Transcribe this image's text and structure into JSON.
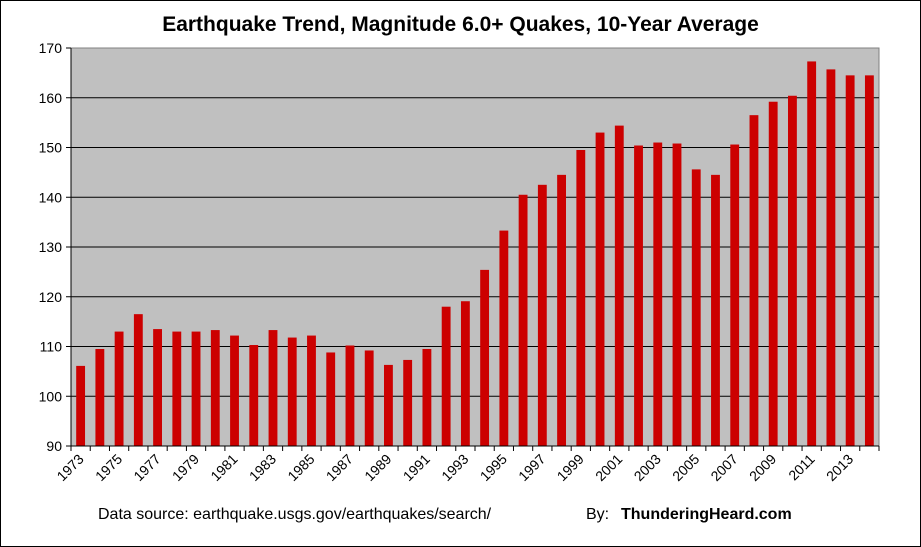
{
  "chart_data": {
    "type": "bar",
    "title": "Earthquake Trend, Magnitude 6.0+ Quakes, 10-Year Average",
    "xlabel": "",
    "ylabel": "",
    "ylim": [
      90,
      170
    ],
    "yticks": [
      "90",
      "100",
      "110",
      "120",
      "130",
      "140",
      "150",
      "160",
      "170"
    ],
    "grid": true,
    "legend": "none",
    "bar_color": "#cc0000",
    "plot_background": "#c0c0c0",
    "categories": [
      "1973",
      "1974",
      "1975",
      "1976",
      "1977",
      "1978",
      "1979",
      "1980",
      "1981",
      "1982",
      "1983",
      "1984",
      "1985",
      "1986",
      "1987",
      "1988",
      "1989",
      "1990",
      "1991",
      "1992",
      "1993",
      "1994",
      "1995",
      "1996",
      "1997",
      "1998",
      "1999",
      "2000",
      "2001",
      "2002",
      "2003",
      "2004",
      "2005",
      "2006",
      "2007",
      "2008",
      "2009",
      "2010",
      "2011",
      "2012",
      "2013",
      "2014"
    ],
    "tick_labels": [
      "1973",
      "1975",
      "1977",
      "1979",
      "1981",
      "1983",
      "1985",
      "1987",
      "1989",
      "1991",
      "1993",
      "1995",
      "1997",
      "1999",
      "2001",
      "2003",
      "2005",
      "2007",
      "2009",
      "2011",
      "2013"
    ],
    "values": [
      106.1,
      109.5,
      113.0,
      116.5,
      113.5,
      113.0,
      113.0,
      113.3,
      112.2,
      110.3,
      113.3,
      111.8,
      112.2,
      108.8,
      110.2,
      109.2,
      106.3,
      107.3,
      109.5,
      118.0,
      119.1,
      125.4,
      133.3,
      140.5,
      142.5,
      144.5,
      149.5,
      153.0,
      154.4,
      150.4,
      151.0,
      150.8,
      145.6,
      144.5,
      150.6,
      156.5,
      159.2,
      160.4,
      167.3,
      165.7,
      164.5,
      164.5
    ]
  },
  "footer": {
    "source": "Data source: earthquake.usgs.gov/earthquakes/search/",
    "by_label": "By:",
    "author": "ThunderingHeard.com"
  }
}
